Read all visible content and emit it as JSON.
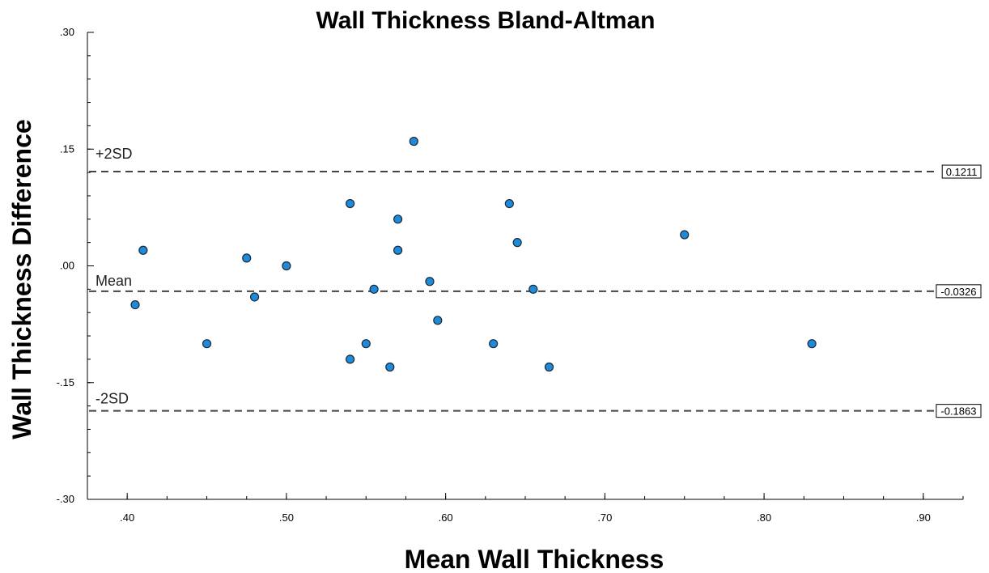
{
  "chart_data": {
    "type": "scatter",
    "title": "Wall Thickness Bland-Altman",
    "xlabel": "Mean Wall Thickness",
    "ylabel": "Wall Thickness Difference",
    "xlim": [
      0.375,
      0.925
    ],
    "ylim": [
      -0.3,
      0.3
    ],
    "x_ticks": [
      0.4,
      0.5,
      0.6,
      0.7,
      0.8,
      0.9
    ],
    "x_tick_labels": [
      ".40",
      ".50",
      ".60",
      ".70",
      ".80",
      ".90"
    ],
    "y_ticks": [
      0.3,
      0.15,
      0.0,
      -0.15,
      -0.3
    ],
    "y_tick_labels": [
      ".30",
      ".15",
      ".00",
      "-.15",
      "-.30"
    ],
    "grid": false,
    "points": [
      {
        "x": 0.41,
        "y": 0.02
      },
      {
        "x": 0.405,
        "y": -0.05
      },
      {
        "x": 0.45,
        "y": -0.1
      },
      {
        "x": 0.475,
        "y": 0.01
      },
      {
        "x": 0.48,
        "y": -0.04
      },
      {
        "x": 0.5,
        "y": 0.0
      },
      {
        "x": 0.54,
        "y": 0.08
      },
      {
        "x": 0.54,
        "y": -0.12
      },
      {
        "x": 0.55,
        "y": -0.1
      },
      {
        "x": 0.555,
        "y": -0.03
      },
      {
        "x": 0.565,
        "y": -0.13
      },
      {
        "x": 0.57,
        "y": 0.06
      },
      {
        "x": 0.57,
        "y": 0.02
      },
      {
        "x": 0.58,
        "y": 0.16
      },
      {
        "x": 0.59,
        "y": -0.02
      },
      {
        "x": 0.595,
        "y": -0.07
      },
      {
        "x": 0.63,
        "y": -0.1
      },
      {
        "x": 0.64,
        "y": 0.08
      },
      {
        "x": 0.645,
        "y": 0.03
      },
      {
        "x": 0.655,
        "y": -0.03
      },
      {
        "x": 0.665,
        "y": -0.13
      },
      {
        "x": 0.75,
        "y": 0.04
      },
      {
        "x": 0.83,
        "y": -0.1
      }
    ],
    "reference_lines": [
      {
        "label": "+2SD",
        "value": 0.1211,
        "value_label": "0.1211"
      },
      {
        "label": "Mean",
        "value": -0.0326,
        "value_label": "-0.0326"
      },
      {
        "label": "-2SD",
        "value": -0.1863,
        "value_label": "-0.1863"
      }
    ],
    "colors": {
      "point_fill": "#1f8ad8",
      "point_stroke": "#1a2a3a",
      "reference_line": "#444444",
      "axis": "#000000"
    }
  }
}
